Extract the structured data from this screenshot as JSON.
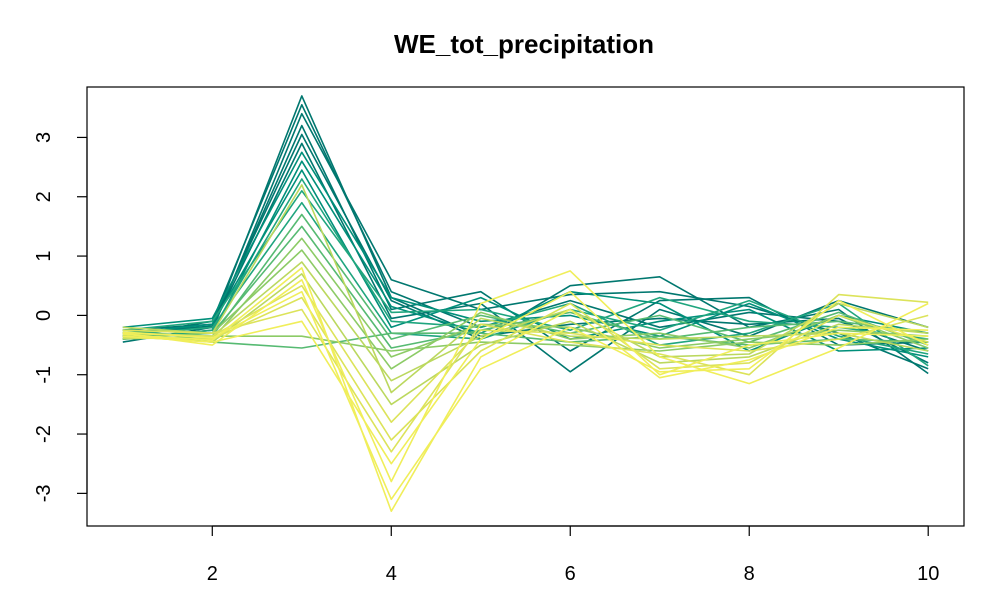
{
  "chart_data": {
    "type": "line",
    "title": "WE_tot_precipitation",
    "xlabel": "",
    "ylabel": "",
    "xlim": [
      0.6,
      10.4
    ],
    "ylim": [
      -3.55,
      3.85
    ],
    "x": [
      1,
      2,
      3,
      4,
      5,
      6,
      7,
      8,
      9,
      10
    ],
    "x_ticks": [
      2,
      4,
      6,
      8,
      10
    ],
    "x_tick_labels": [
      "2",
      "4",
      "6",
      "8",
      "10"
    ],
    "y_ticks": [
      -3,
      -2,
      -1,
      0,
      1,
      2,
      3
    ],
    "y_tick_labels": [
      "-3",
      "-2",
      "-1",
      "0",
      "1",
      "2",
      "3"
    ],
    "grid": false,
    "legend": "none",
    "palette": [
      "#00776F",
      "#008F7A",
      "#1FA57E",
      "#56BA72",
      "#8CCB66",
      "#BBD85E",
      "#DCE35A",
      "#F0EE5A"
    ],
    "series": [
      {
        "color": "#00776F",
        "values": [
          -0.3,
          -0.18,
          3.7,
          0.3,
          -0.35,
          -0.15,
          -0.05,
          -0.15,
          -0.05,
          -0.8
        ]
      },
      {
        "color": "#00776F",
        "values": [
          -0.35,
          -0.1,
          3.55,
          0.4,
          -0.2,
          0.25,
          -0.2,
          0.05,
          -0.1,
          -0.6
        ]
      },
      {
        "color": "#00776F",
        "values": [
          -0.4,
          -0.25,
          3.4,
          0.6,
          0.1,
          0.35,
          0.4,
          0.15,
          -0.3,
          -0.9
        ]
      },
      {
        "color": "#00776F",
        "values": [
          -0.3,
          -0.2,
          3.2,
          0.1,
          0.4,
          -0.6,
          0.25,
          0.3,
          -0.5,
          -0.45
        ]
      },
      {
        "color": "#00776F",
        "values": [
          -0.25,
          -0.15,
          3.05,
          0.25,
          -0.4,
          0.5,
          0.65,
          -0.2,
          0.1,
          -0.98
        ]
      },
      {
        "color": "#00776F",
        "values": [
          -0.45,
          -0.2,
          2.9,
          -0.05,
          0.2,
          -0.95,
          0.1,
          -0.35,
          0.25,
          -0.2
        ]
      },
      {
        "color": "#008F7A",
        "values": [
          -0.2,
          -0.05,
          2.75,
          0.3,
          -0.1,
          0.0,
          -0.35,
          0.2,
          -0.4,
          -0.7
        ]
      },
      {
        "color": "#008F7A",
        "values": [
          -0.35,
          -0.3,
          2.6,
          0.15,
          -0.3,
          0.4,
          0.2,
          -0.6,
          0.0,
          -0.3
        ]
      },
      {
        "color": "#008F7A",
        "values": [
          -0.3,
          -0.15,
          2.45,
          -0.2,
          0.3,
          -0.4,
          -0.1,
          0.1,
          -0.6,
          -0.55
        ]
      },
      {
        "color": "#1FA57E",
        "values": [
          -0.4,
          -0.25,
          2.3,
          -0.1,
          -0.2,
          0.2,
          -0.5,
          -0.3,
          0.2,
          -0.85
        ]
      },
      {
        "color": "#1FA57E",
        "values": [
          -0.25,
          -0.1,
          2.1,
          0.05,
          0.1,
          -0.25,
          0.3,
          -0.1,
          -0.2,
          -0.4
        ]
      },
      {
        "color": "#1FA57E",
        "values": [
          -0.33,
          -0.2,
          1.9,
          -0.3,
          -0.4,
          0.1,
          -0.25,
          0.25,
          -0.35,
          -0.65
        ]
      },
      {
        "color": "#56BA72",
        "values": [
          -0.28,
          -0.35,
          1.7,
          -0.4,
          0.0,
          -0.3,
          0.0,
          -0.45,
          0.05,
          -0.5
        ]
      },
      {
        "color": "#56BA72",
        "values": [
          -0.38,
          -0.3,
          1.5,
          -0.55,
          -0.25,
          0.05,
          -0.4,
          -0.2,
          -0.1,
          -0.3
        ]
      },
      {
        "color": "#56BA72",
        "values": [
          -0.3,
          -0.45,
          -0.55,
          -0.3,
          -0.3,
          -0.45,
          -0.35,
          -0.5,
          -0.4,
          -0.45
        ]
      },
      {
        "color": "#8CCB66",
        "values": [
          -0.35,
          -0.4,
          1.3,
          -0.7,
          -0.15,
          -0.2,
          -0.55,
          -0.4,
          -0.25,
          -0.35
        ]
      },
      {
        "color": "#8CCB66",
        "values": [
          -0.25,
          -0.3,
          1.1,
          -0.9,
          0.05,
          -0.4,
          -0.3,
          -0.55,
          0.0,
          -0.55
        ]
      },
      {
        "color": "#8CCB66",
        "values": [
          -0.4,
          -0.35,
          -0.35,
          -0.6,
          -0.45,
          -0.5,
          -0.6,
          -0.45,
          -0.5,
          -0.4
        ]
      },
      {
        "color": "#BBD85E",
        "values": [
          -0.3,
          -0.35,
          0.9,
          -1.1,
          -0.35,
          0.1,
          -0.7,
          -0.65,
          0.2,
          -0.2
        ]
      },
      {
        "color": "#BBD85E",
        "values": [
          -0.2,
          -0.3,
          2.2,
          -1.3,
          -0.05,
          -0.35,
          -0.4,
          -0.35,
          -0.3,
          -0.6
        ]
      },
      {
        "color": "#BBD85E",
        "values": [
          -0.35,
          -0.45,
          0.7,
          -1.5,
          -0.5,
          -0.1,
          -0.8,
          -0.7,
          -0.15,
          -0.3
        ]
      },
      {
        "color": "#DCE35A",
        "values": [
          -0.3,
          -0.35,
          0.5,
          -1.8,
          -0.25,
          -0.3,
          -0.5,
          -0.6,
          -0.4,
          0.0
        ]
      },
      {
        "color": "#DCE35A",
        "values": [
          -0.38,
          -0.4,
          0.3,
          -2.1,
          -0.6,
          0.2,
          -0.9,
          -0.8,
          0.0,
          -0.45
        ]
      },
      {
        "color": "#DCE35A",
        "values": [
          -0.25,
          -0.3,
          0.1,
          -2.3,
          -0.15,
          -0.45,
          -0.65,
          -1.0,
          0.35,
          0.22
        ]
      },
      {
        "color": "#F0EE5A",
        "values": [
          -0.35,
          -0.45,
          -0.1,
          -2.5,
          -0.4,
          0.4,
          -1.0,
          -0.5,
          -0.3,
          -0.35
        ]
      },
      {
        "color": "#F0EE5A",
        "values": [
          -0.3,
          -0.5,
          0.6,
          -2.8,
          0.2,
          0.75,
          -0.7,
          -1.15,
          -0.55,
          0.2
        ]
      },
      {
        "color": "#F0EE5A",
        "values": [
          -0.28,
          -0.38,
          0.4,
          -3.1,
          -0.9,
          -0.2,
          -0.95,
          -0.9,
          0.25,
          -0.5
        ]
      },
      {
        "color": "#F0EE5A",
        "values": [
          -0.32,
          -0.42,
          0.8,
          -3.3,
          -0.7,
          0.1,
          -1.05,
          -0.75,
          -0.2,
          -0.25
        ]
      }
    ]
  }
}
